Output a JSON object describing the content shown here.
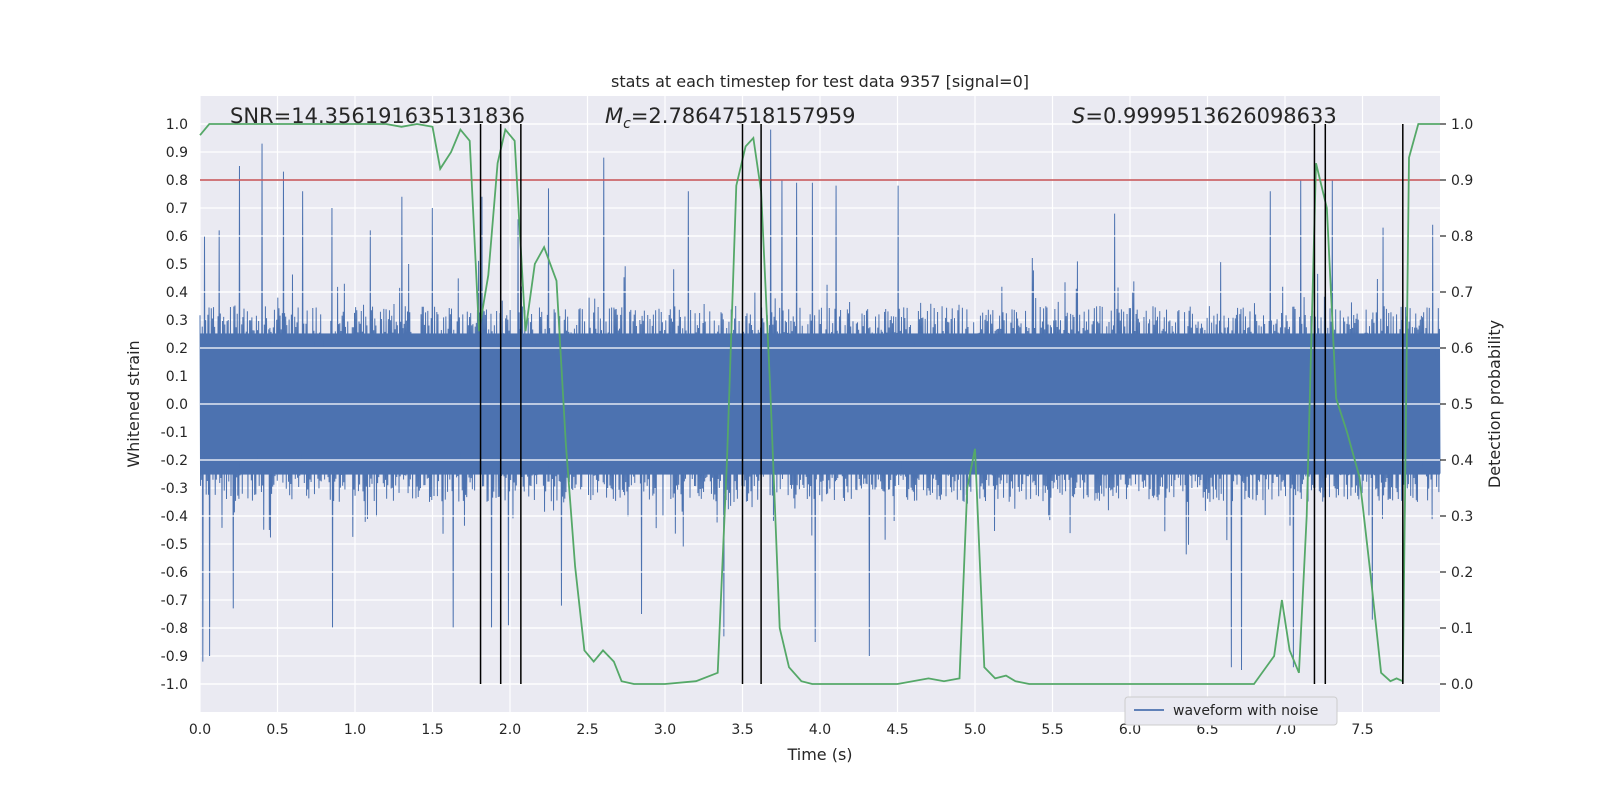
{
  "chart_data": {
    "type": "line",
    "title": "stats at each timestep for test data 9357 [signal=0]",
    "xlabel": "Time (s)",
    "ylabel": "Whitened strain",
    "y2label": "Detection probability",
    "xlim": [
      0.0,
      8.0
    ],
    "ylim": [
      -1.1,
      1.1
    ],
    "y2lim": [
      -0.05,
      1.05
    ],
    "xticks": [
      0.0,
      0.5,
      1.0,
      1.5,
      2.0,
      2.5,
      3.0,
      3.5,
      4.0,
      4.5,
      5.0,
      5.5,
      6.0,
      6.5,
      7.0,
      7.5
    ],
    "xtick_labels": [
      "0.0",
      "0.5",
      "1.0",
      "1.5",
      "2.0",
      "2.5",
      "3.0",
      "3.5",
      "4.0",
      "4.5",
      "5.0",
      "5.5",
      "6.0",
      "6.5",
      "7.0",
      "7.5"
    ],
    "yticks": [
      1.0,
      0.9,
      0.8,
      0.7,
      0.6,
      0.5,
      0.4,
      0.3,
      0.2,
      0.1,
      0.0,
      -0.1,
      -0.2,
      -0.3,
      -0.4,
      -0.5,
      -0.6,
      -0.7,
      -0.8,
      -0.9,
      -1.0
    ],
    "ytick_labels": [
      "1.0",
      "0.9",
      "0.8",
      "0.7",
      "0.6",
      "0.5",
      "0.4",
      "0.3",
      "0.2",
      "0.1",
      "0.0",
      "-0.1",
      "-0.2",
      "-0.3",
      "-0.4",
      "-0.5",
      "-0.6",
      "-0.7",
      "-0.8",
      "-0.9",
      "-1.0"
    ],
    "y2ticks": [
      1.0,
      0.9,
      0.8,
      0.7,
      0.6,
      0.5,
      0.4,
      0.3,
      0.2,
      0.1,
      0.0
    ],
    "y2tick_labels": [
      "1.0",
      "0.9",
      "0.8",
      "0.7",
      "0.6",
      "0.5",
      "0.4",
      "0.3",
      "0.2",
      "0.1",
      "0.0"
    ],
    "annotations": {
      "snr": "SNR=14.356191635131836",
      "mc_symbol": "M",
      "mc_subscript": "c",
      "mc_value": "=2.78647518157959",
      "s_symbol": "S",
      "s_value": "=0.9999513626098633"
    },
    "threshold": {
      "value": 0.9,
      "axis": "y2",
      "color": "#c44e52"
    },
    "vertical_lines": [
      1.81,
      1.94,
      2.07,
      3.5,
      3.62,
      7.19,
      7.26,
      7.76
    ],
    "legend": {
      "label": "waveform with noise",
      "position": "lower-right"
    },
    "waveform": {
      "name": "waveform with noise",
      "color": "#4c72b0",
      "typical_amplitude": 0.35,
      "peaks_positive": [
        [
          0.03,
          0.6
        ],
        [
          0.12,
          0.62
        ],
        [
          0.25,
          0.85
        ],
        [
          0.4,
          0.93
        ],
        [
          0.54,
          0.83
        ],
        [
          0.66,
          0.76
        ],
        [
          0.85,
          0.7
        ],
        [
          1.1,
          0.62
        ],
        [
          1.3,
          0.74
        ],
        [
          1.5,
          0.7
        ],
        [
          1.82,
          0.74
        ],
        [
          2.05,
          0.66
        ],
        [
          2.25,
          0.77
        ],
        [
          2.6,
          0.88
        ],
        [
          3.15,
          0.76
        ],
        [
          3.68,
          0.98
        ],
        [
          3.75,
          0.8
        ],
        [
          3.85,
          0.79
        ],
        [
          3.95,
          0.79
        ],
        [
          4.1,
          0.78
        ],
        [
          4.5,
          0.78
        ],
        [
          5.9,
          0.68
        ],
        [
          6.9,
          0.76
        ],
        [
          7.1,
          0.8
        ],
        [
          7.3,
          0.8
        ],
        [
          7.63,
          0.63
        ],
        [
          7.95,
          0.64
        ]
      ],
      "peaks_negative": [
        [
          0.02,
          -0.92
        ],
        [
          0.06,
          -0.9
        ],
        [
          0.21,
          -0.73
        ],
        [
          0.85,
          -0.8
        ],
        [
          1.63,
          -0.8
        ],
        [
          1.88,
          -0.8
        ],
        [
          1.99,
          -0.79
        ],
        [
          2.33,
          -0.72
        ],
        [
          2.85,
          -0.75
        ],
        [
          3.38,
          -0.83
        ],
        [
          3.97,
          -0.85
        ],
        [
          4.32,
          -0.9
        ],
        [
          6.65,
          -0.94
        ],
        [
          6.72,
          -0.95
        ],
        [
          7.05,
          -0.94
        ],
        [
          7.56,
          -0.77
        ]
      ]
    },
    "probability": {
      "name": "Detection probability",
      "color": "#55a868",
      "x": [
        0.0,
        0.06,
        0.3,
        0.6,
        0.9,
        1.2,
        1.3,
        1.4,
        1.5,
        1.55,
        1.62,
        1.68,
        1.74,
        1.8,
        1.86,
        1.92,
        1.97,
        2.03,
        2.1,
        2.16,
        2.22,
        2.3,
        2.36,
        2.42,
        2.48,
        2.54,
        2.6,
        2.67,
        2.72,
        2.8,
        3.0,
        3.2,
        3.34,
        3.4,
        3.46,
        3.52,
        3.57,
        3.62,
        3.68,
        3.74,
        3.8,
        3.88,
        3.95,
        4.1,
        4.3,
        4.5,
        4.7,
        4.8,
        4.9,
        4.95,
        5.0,
        5.06,
        5.13,
        5.2,
        5.26,
        5.35,
        5.6,
        6.0,
        6.5,
        6.8,
        6.93,
        6.98,
        7.03,
        7.09,
        7.14,
        7.2,
        7.27,
        7.33,
        7.4,
        7.48,
        7.55,
        7.62,
        7.68,
        7.72,
        7.76,
        7.8,
        7.86,
        7.9,
        8.0
      ],
      "y": [
        0.98,
        1.0,
        1.0,
        1.0,
        1.0,
        1.0,
        0.995,
        1.0,
        0.995,
        0.92,
        0.95,
        0.99,
        0.97,
        0.63,
        0.73,
        0.93,
        0.99,
        0.97,
        0.63,
        0.75,
        0.78,
        0.72,
        0.43,
        0.21,
        0.06,
        0.04,
        0.06,
        0.04,
        0.005,
        0.0,
        0.0,
        0.005,
        0.02,
        0.4,
        0.89,
        0.96,
        0.975,
        0.88,
        0.52,
        0.1,
        0.03,
        0.005,
        0.0,
        0.0,
        0.0,
        0.0,
        0.01,
        0.005,
        0.01,
        0.35,
        0.42,
        0.03,
        0.01,
        0.015,
        0.005,
        0.0,
        0.0,
        0.0,
        0.0,
        0.0,
        0.05,
        0.15,
        0.06,
        0.02,
        0.3,
        0.93,
        0.85,
        0.51,
        0.45,
        0.37,
        0.2,
        0.02,
        0.005,
        0.01,
        0.005,
        0.94,
        1.0,
        1.0,
        1.0
      ]
    }
  }
}
